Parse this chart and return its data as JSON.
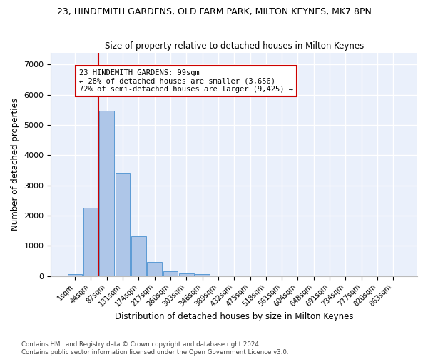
{
  "title": "23, HINDEMITH GARDENS, OLD FARM PARK, MILTON KEYNES, MK7 8PN",
  "subtitle": "Size of property relative to detached houses in Milton Keynes",
  "xlabel": "Distribution of detached houses by size in Milton Keynes",
  "ylabel": "Number of detached properties",
  "bar_color": "#aec6e8",
  "bar_edge_color": "#5b9bd5",
  "background_color": "#eaf0fb",
  "grid_color": "#ffffff",
  "vline_color": "#cc0000",
  "annotation_text": "23 HINDEMITH GARDENS: 99sqm\n← 28% of detached houses are smaller (3,656)\n72% of semi-detached houses are larger (9,425) →",
  "annotation_box_color": "#ffffff",
  "annotation_box_edge_color": "#cc0000",
  "bins": [
    "1sqm",
    "44sqm",
    "87sqm",
    "131sqm",
    "174sqm",
    "217sqm",
    "260sqm",
    "303sqm",
    "346sqm",
    "389sqm",
    "432sqm",
    "475sqm",
    "518sqm",
    "561sqm",
    "604sqm",
    "648sqm",
    "691sqm",
    "734sqm",
    "777sqm",
    "820sqm",
    "863sqm"
  ],
  "values": [
    75,
    2270,
    5480,
    3430,
    1310,
    460,
    155,
    90,
    60,
    0,
    0,
    0,
    0,
    0,
    0,
    0,
    0,
    0,
    0,
    0,
    0
  ],
  "ylim": [
    0,
    7400
  ],
  "yticks": [
    0,
    1000,
    2000,
    3000,
    4000,
    5000,
    6000,
    7000
  ],
  "footnote": "Contains HM Land Registry data © Crown copyright and database right 2024.\nContains public sector information licensed under the Open Government Licence v3.0.",
  "figsize": [
    6.0,
    5.0
  ],
  "dpi": 100
}
